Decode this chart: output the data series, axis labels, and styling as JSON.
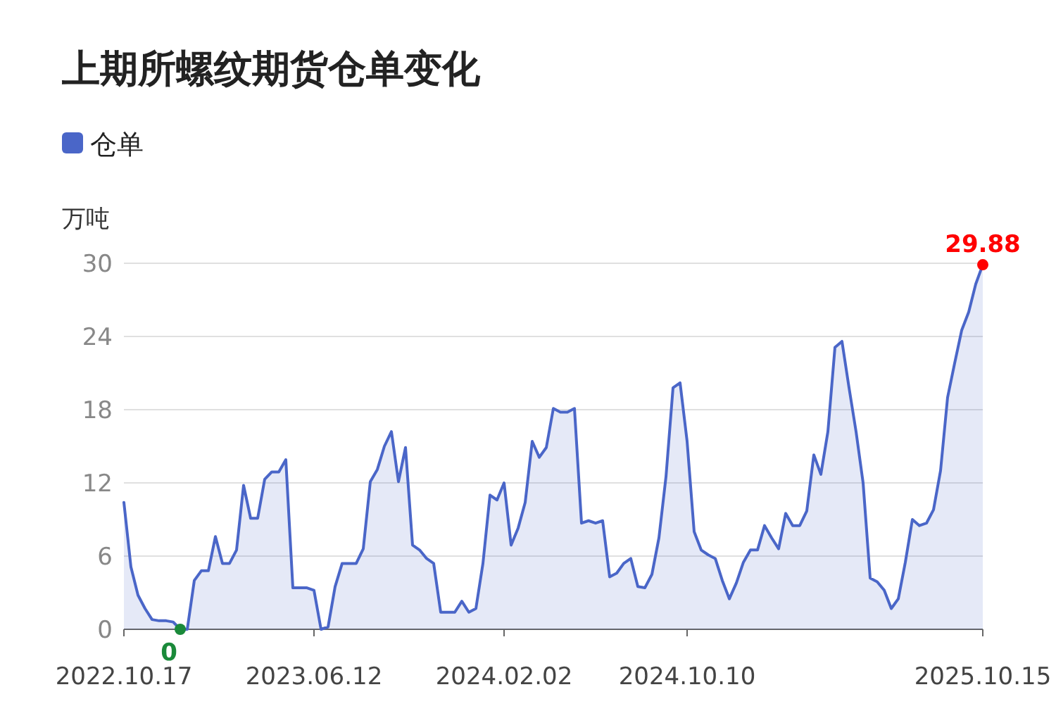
{
  "chart_data": {
    "type": "area",
    "title": "上期所螺纹期货仓单变化",
    "ylabel": "万吨",
    "categories": [
      "2022.10.17",
      null,
      null,
      null,
      null,
      null,
      null,
      null,
      null,
      null,
      null,
      null,
      null,
      null,
      null,
      null,
      null,
      null,
      null,
      null,
      null,
      null,
      null,
      null,
      null,
      null,
      null,
      "2023.06.12",
      null,
      null,
      null,
      null,
      null,
      null,
      null,
      null,
      null,
      null,
      null,
      null,
      null,
      null,
      null,
      null,
      null,
      null,
      null,
      null,
      null,
      null,
      null,
      null,
      null,
      null,
      "2024.02.02",
      null,
      null,
      null,
      null,
      null,
      null,
      null,
      null,
      null,
      null,
      null,
      null,
      null,
      null,
      null,
      null,
      null,
      null,
      null,
      null,
      null,
      null,
      null,
      null,
      null,
      "2024.10.10",
      null,
      null,
      null,
      null,
      null,
      null,
      null,
      null,
      null,
      null,
      null,
      null,
      null,
      null,
      null,
      null,
      null,
      null,
      null,
      null,
      null,
      null,
      null,
      null,
      null,
      null,
      null,
      null,
      null,
      null,
      null,
      null,
      null,
      null,
      null,
      null,
      null,
      null,
      null,
      null,
      null,
      "2025.10.15"
    ],
    "series": [
      {
        "name": "仓单",
        "color": "#4a66c8",
        "values": [
          10.4,
          5.1,
          2.8,
          1.7,
          0.8,
          0.7,
          0.7,
          0.6,
          0,
          0,
          4.0,
          4.8,
          4.8,
          7.6,
          5.4,
          5.4,
          6.5,
          11.8,
          9.1,
          9.1,
          12.3,
          12.9,
          12.9,
          13.9,
          3.4,
          3.4,
          3.4,
          3.2,
          0,
          0.2,
          3.5,
          5.4,
          5.4,
          5.4,
          6.6,
          12.1,
          13.1,
          15.0,
          16.2,
          12.1,
          14.9,
          6.9,
          6.5,
          5.8,
          5.4,
          1.4,
          1.4,
          1.4,
          2.3,
          1.4,
          1.7,
          5.4,
          11.0,
          10.6,
          12.0,
          6.9,
          8.3,
          10.4,
          15.4,
          14.1,
          14.9,
          18.1,
          17.8,
          17.8,
          18.1,
          8.7,
          8.9,
          8.7,
          8.9,
          4.3,
          4.6,
          5.4,
          5.8,
          3.5,
          3.4,
          4.5,
          7.5,
          12.5,
          19.8,
          20.2,
          15.4,
          8.0,
          6.5,
          6.1,
          5.8,
          4.0,
          2.5,
          3.8,
          5.5,
          6.5,
          6.5,
          8.5,
          7.5,
          6.6,
          9.5,
          8.5,
          8.5,
          9.7,
          14.3,
          12.7,
          16.2,
          23.1,
          23.6,
          19.8,
          16.2,
          12.0,
          4.2,
          3.9,
          3.2,
          1.7,
          2.5,
          5.5,
          9.0,
          8.5,
          8.7,
          9.8,
          13.0,
          19.0,
          21.8,
          24.5,
          26.0,
          28.3,
          29.88
        ]
      }
    ],
    "ylim": [
      0,
      30
    ],
    "yticks": [
      0,
      6,
      12,
      18,
      24,
      30
    ],
    "grid": "y",
    "legend": "top left",
    "annotations": [
      {
        "text": "0",
        "y": 0
      },
      {
        "text": "29.88",
        "x": "2025.10.15",
        "y": 29.88
      }
    ]
  }
}
